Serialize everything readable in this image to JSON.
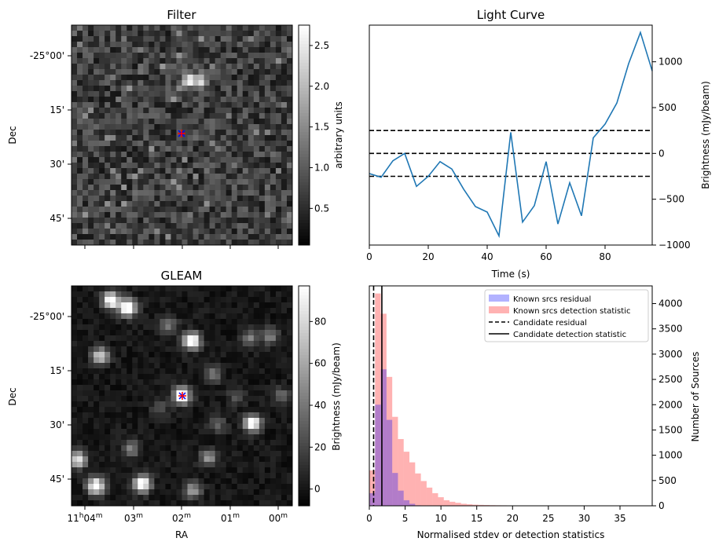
{
  "chart_data": [
    {
      "type": "heatmap",
      "title": "Filter",
      "ylabel": "Dec",
      "yticks": [
        "-25°00'",
        "15'",
        "30'",
        "45'"
      ],
      "colorbar": {
        "label": "arbitrary units",
        "ticks": [
          "0.5",
          "1.0",
          "1.5",
          "2.0",
          "2.5"
        ],
        "range": [
          0.05,
          2.75
        ]
      },
      "markers": [
        "x",
        "+"
      ]
    },
    {
      "type": "line",
      "title": "Light Curve",
      "xlabel": "Time (s)",
      "ylabel": "Brightness (mJy/beam)",
      "xlim": [
        0,
        96
      ],
      "ylim": [
        -1000,
        1400
      ],
      "xticks": [
        "0",
        "20",
        "40",
        "60",
        "80"
      ],
      "yticks": [
        "−1000",
        "−500",
        "0",
        "500",
        "1000"
      ],
      "x": [
        0,
        4,
        8,
        12,
        16,
        20,
        24,
        28,
        32,
        36,
        40,
        44,
        48,
        52,
        56,
        60,
        64,
        68,
        72,
        76,
        80,
        84,
        88,
        92,
        96
      ],
      "values": [
        -220,
        -260,
        -80,
        0,
        -360,
        -250,
        -90,
        -170,
        -390,
        -580,
        -640,
        -900,
        230,
        -750,
        -570,
        -90,
        -770,
        -320,
        -680,
        170,
        320,
        550,
        980,
        1320,
        900
      ],
      "hlines": [
        250,
        0,
        -250
      ],
      "color": "#1f77b4"
    },
    {
      "type": "heatmap",
      "title": "GLEAM",
      "xlabel": "RA",
      "ylabel": "Dec",
      "xticks": [
        {
          "base": "11",
          "h": "h",
          "m": "04",
          "u": "m"
        },
        {
          "base": "03",
          "m": "",
          "u": "m"
        },
        {
          "base": "02",
          "u": "m"
        },
        {
          "base": "01",
          "u": "m"
        },
        {
          "base": "00",
          "u": "m"
        }
      ],
      "yticks": [
        "-25°00'",
        "15'",
        "30'",
        "45'"
      ],
      "colorbar": {
        "label": "Brightness (mJy/beam)",
        "ticks": [
          "0",
          "20",
          "40",
          "60",
          "80"
        ],
        "range": [
          -8,
          97
        ]
      },
      "markers": [
        "x",
        "+"
      ]
    },
    {
      "type": "bar",
      "xlabel": "Normalised stdev or detection statistics",
      "ylabel": "Number of Sources",
      "xlim": [
        0,
        39.5
      ],
      "ylim": [
        0,
        4350
      ],
      "xticks": [
        "0",
        "5",
        "10",
        "15",
        "20",
        "25",
        "30",
        "35"
      ],
      "yticks": [
        "0",
        "500",
        "1000",
        "1500",
        "2000",
        "2500",
        "3000",
        "3500",
        "4000"
      ],
      "bin_width": 0.8,
      "series": [
        {
          "name": "Known srcs residual",
          "color": "#0000ff",
          "bin_starts": [
            0,
            0.8,
            1.6,
            2.4,
            3.2,
            4.0,
            4.8,
            5.6,
            6.4
          ],
          "values": [
            250,
            2000,
            2700,
            1700,
            650,
            300,
            110,
            40,
            10
          ]
        },
        {
          "name": "Known srcs detection statistic",
          "color": "#ff0000",
          "bin_starts": [
            0,
            0.8,
            1.6,
            2.4,
            3.2,
            4.0,
            4.8,
            5.6,
            6.4,
            7.2,
            8.0,
            8.8,
            9.6,
            10.4,
            11.2,
            12.0,
            12.8,
            13.6,
            14.4,
            15.2,
            16.0,
            16.8,
            17.6,
            18.4,
            19.2,
            20.0,
            20.8,
            21.6,
            22.4,
            23.2,
            24.0,
            24.8,
            25.6,
            26.4,
            27.2,
            28.0,
            28.8,
            29.6,
            30.4,
            31.2,
            32.0,
            36.8
          ],
          "values": [
            700,
            4200,
            3800,
            2550,
            1760,
            1320,
            1070,
            860,
            640,
            490,
            360,
            250,
            170,
            110,
            80,
            60,
            40,
            30,
            22,
            18,
            15,
            12,
            10,
            9,
            7,
            6,
            6,
            5,
            5,
            4,
            4,
            4,
            4,
            3,
            3,
            3,
            3,
            3,
            3,
            3,
            3,
            6
          ]
        }
      ],
      "vlines": [
        {
          "name": "Candidate residual",
          "x": 0.6,
          "style": "dashed"
        },
        {
          "name": "Candidate detection statistic",
          "x": 1.75,
          "style": "solid"
        }
      ],
      "legend": "top-right"
    }
  ]
}
